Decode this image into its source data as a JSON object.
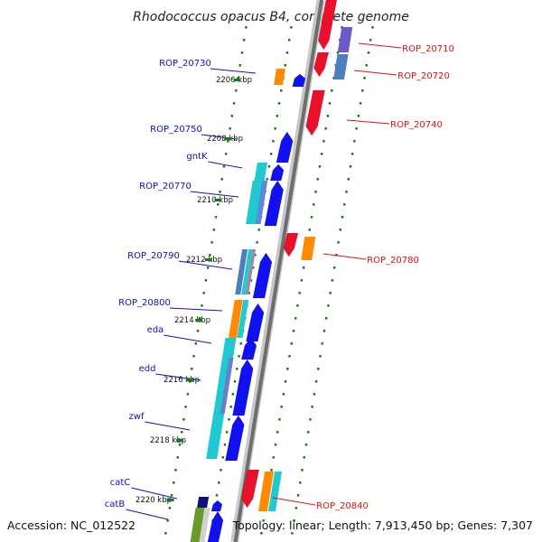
{
  "title": "Rhodococcus opacus B4, complete genome",
  "footer": {
    "accession": "Accession: NC_012522",
    "summary": "Topology: linear; Length: 7,913,450 bp; Genes: 7,307"
  },
  "colors": {
    "backbone": "#7a7a7a",
    "dots": "#1a7a1a",
    "left_label": "#1010c0",
    "right_label": "#e01010"
  },
  "kbp_labels": [
    "2206 kbp",
    "2208 kbp",
    "2210 kbp",
    "2212 kbp",
    "2214 kbp",
    "2216 kbp",
    "2218 kbp",
    "2220 kbp"
  ],
  "left_genes": [
    "ROP_20730",
    "ROP_20750",
    "gntK",
    "ROP_20770",
    "ROP_20790",
    "ROP_20800",
    "eda",
    "edd",
    "zwf",
    "catC",
    "catB"
  ],
  "right_genes": [
    "ROP_20710",
    "ROP_20720",
    "ROP_20740",
    "ROP_20780",
    "ROP_20840"
  ]
}
